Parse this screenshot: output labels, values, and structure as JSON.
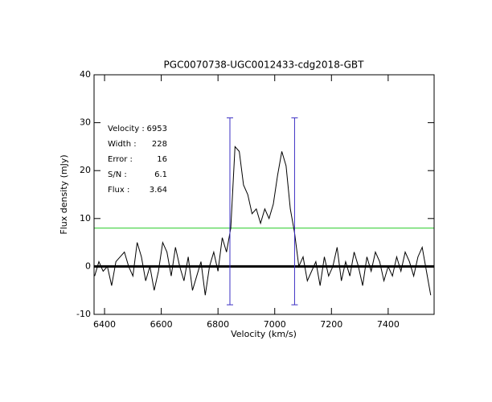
{
  "chart_data": {
    "type": "line",
    "title": "PGC0070738-UGC0012433-cdg2018-GBT",
    "x_label": "Velocity (km/s)",
    "y_label": "Flux density (mJy)",
    "xlim": [
      6363,
      7562
    ],
    "ylim": [
      -10,
      40
    ],
    "xticks": [
      6400,
      6600,
      6800,
      7000,
      7200,
      7400
    ],
    "yticks": [
      -10,
      0,
      10,
      20,
      30,
      40
    ],
    "color": "#000000",
    "x": [
      6365,
      6380,
      6395,
      6410,
      6425,
      6440,
      6455,
      6470,
      6485,
      6500,
      6515,
      6530,
      6545,
      6560,
      6575,
      6590,
      6605,
      6620,
      6635,
      6650,
      6665,
      6680,
      6695,
      6710,
      6725,
      6740,
      6755,
      6770,
      6785,
      6800,
      6815,
      6830,
      6845,
      6860,
      6875,
      6890,
      6905,
      6920,
      6935,
      6950,
      6965,
      6980,
      6995,
      7010,
      7025,
      7040,
      7055,
      7070,
      7085,
      7100,
      7115,
      7130,
      7145,
      7160,
      7175,
      7190,
      7205,
      7220,
      7235,
      7250,
      7265,
      7280,
      7295,
      7310,
      7325,
      7340,
      7355,
      7370,
      7385,
      7400,
      7415,
      7430,
      7445,
      7460,
      7475,
      7490,
      7505,
      7520,
      7535,
      7550
    ],
    "values": [
      -2,
      1,
      -1,
      0,
      -4,
      1,
      2,
      3,
      0,
      -2,
      5,
      2,
      -3,
      0,
      -5,
      -1,
      5,
      3,
      -2,
      4,
      0,
      -3,
      2,
      -5,
      -2,
      1,
      -6,
      0,
      3,
      -1,
      6,
      3,
      8,
      25,
      24,
      17,
      15,
      11,
      12,
      9,
      12,
      10,
      13,
      19,
      24,
      21,
      12,
      7,
      0,
      2,
      -3,
      -1,
      1,
      -4,
      2,
      -2,
      0,
      4,
      -3,
      1,
      -2,
      3,
      0,
      -4,
      2,
      -1,
      3,
      1,
      -3,
      0,
      -2,
      2,
      -1,
      3,
      1,
      -2,
      2,
      4,
      -1,
      -6
    ],
    "threshold": {
      "value": 8,
      "color": "#22cc22"
    },
    "markers": {
      "x": [
        6842,
        7070
      ],
      "ymin": -8,
      "ymax": 31,
      "color": "#3b2fc4"
    },
    "annotations": [
      {
        "label": "Velocity :",
        "value": 6953
      },
      {
        "label": "Width :",
        "value": 228
      },
      {
        "label": "Error :",
        "value": 16
      },
      {
        "label": "S/N :",
        "value": 6.1
      },
      {
        "label": "Flux :",
        "value": 3.64
      }
    ],
    "annotation_color": "#3b2fc4"
  }
}
